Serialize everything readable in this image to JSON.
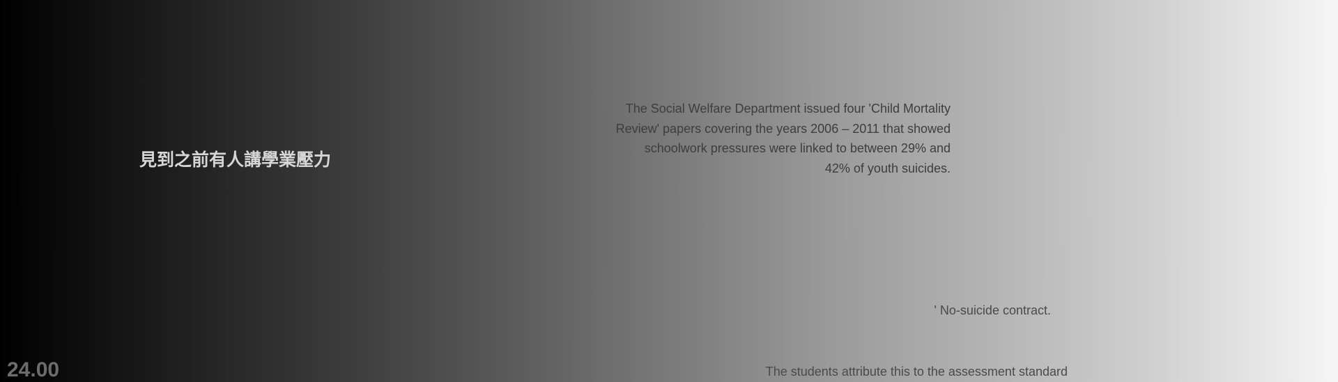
{
  "subtitle_zh": "見到之前有人講學業壓力",
  "paragraph_lines": [
    "The Social Welfare Department issued four 'Child Mortality",
    "Review' papers covering the years 2006 – 2011 that showed",
    "schoolwork pressures were linked to between 29% and",
    "42% of youth suicides."
  ],
  "note": "' No-suicide contract.",
  "caption": "The students attribute this to the assessment standard",
  "timestamp": "24.00"
}
